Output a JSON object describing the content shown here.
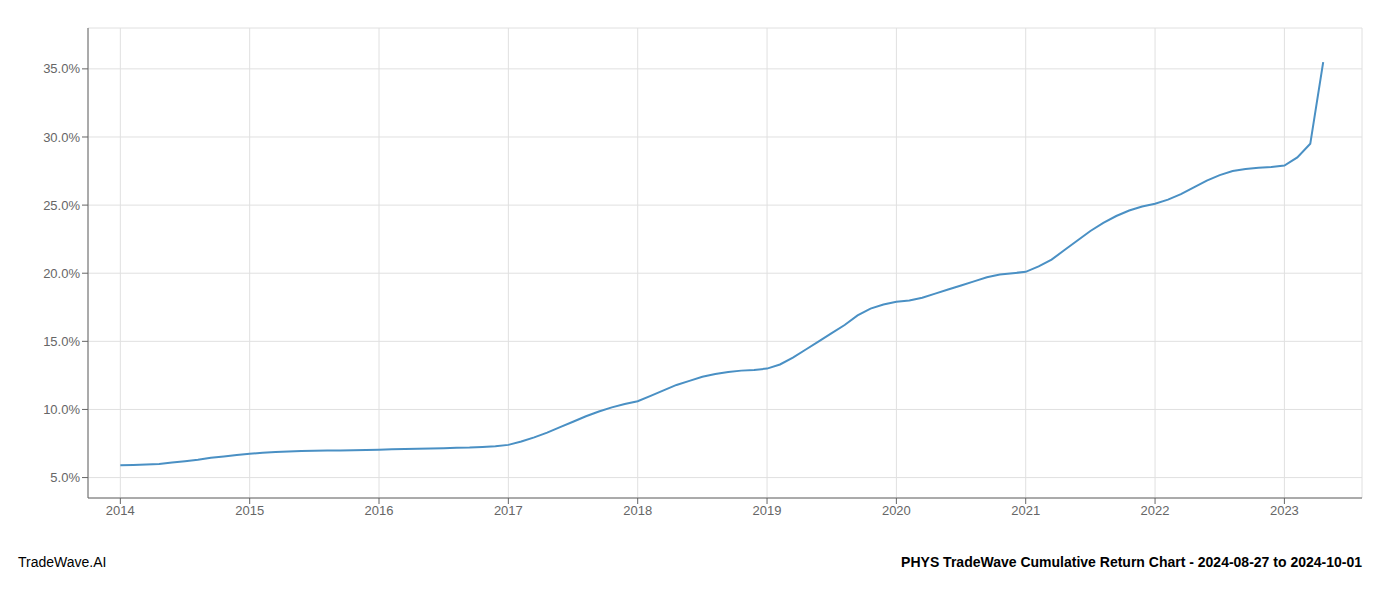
{
  "chart_data": {
    "type": "line",
    "title": "PHYS TradeWave Cumulative Return Chart - 2024-08-27 to 2024-10-01",
    "annotations": [
      "TradeWave.AI"
    ],
    "color": "#4a90c4",
    "grid": true,
    "x": [
      2014.0,
      2014.1,
      2014.2,
      2014.3,
      2014.4,
      2014.5,
      2014.6,
      2014.7,
      2014.8,
      2014.9,
      2015.0,
      2015.1,
      2015.2,
      2015.3,
      2015.4,
      2015.5,
      2015.6,
      2015.7,
      2015.8,
      2015.9,
      2016.0,
      2016.1,
      2016.2,
      2016.3,
      2016.4,
      2016.5,
      2016.6,
      2016.7,
      2016.8,
      2016.9,
      2017.0,
      2017.1,
      2017.2,
      2017.3,
      2017.4,
      2017.5,
      2017.6,
      2017.7,
      2017.8,
      2017.9,
      2018.0,
      2018.1,
      2018.2,
      2018.3,
      2018.4,
      2018.5,
      2018.6,
      2018.7,
      2018.8,
      2018.9,
      2019.0,
      2019.1,
      2019.2,
      2019.3,
      2019.4,
      2019.5,
      2019.6,
      2019.7,
      2019.8,
      2019.9,
      2020.0,
      2020.1,
      2020.2,
      2020.3,
      2020.4,
      2020.5,
      2020.6,
      2020.7,
      2020.8,
      2020.9,
      2021.0,
      2021.1,
      2021.2,
      2021.3,
      2021.4,
      2021.5,
      2021.6,
      2021.7,
      2021.8,
      2021.9,
      2022.0,
      2022.1,
      2022.2,
      2022.3,
      2022.4,
      2022.5,
      2022.6,
      2022.7,
      2022.8,
      2022.9,
      2023.0,
      2023.1,
      2023.2,
      2023.3
    ],
    "values": [
      5.9,
      5.92,
      5.95,
      6.0,
      6.1,
      6.2,
      6.3,
      6.45,
      6.55,
      6.65,
      6.75,
      6.82,
      6.88,
      6.92,
      6.95,
      6.97,
      6.98,
      6.99,
      7.0,
      7.02,
      7.05,
      7.08,
      7.1,
      7.12,
      7.14,
      7.16,
      7.18,
      7.2,
      7.25,
      7.3,
      7.4,
      7.65,
      7.95,
      8.3,
      8.7,
      9.1,
      9.5,
      9.85,
      10.15,
      10.4,
      10.6,
      11.0,
      11.4,
      11.8,
      12.1,
      12.4,
      12.6,
      12.75,
      12.85,
      12.9,
      13.0,
      13.3,
      13.8,
      14.4,
      15.0,
      15.6,
      16.2,
      16.9,
      17.4,
      17.7,
      17.9,
      18.0,
      18.2,
      18.5,
      18.8,
      19.1,
      19.4,
      19.7,
      19.9,
      20.0,
      20.1,
      20.5,
      21.0,
      21.7,
      22.4,
      23.1,
      23.7,
      24.2,
      24.6,
      24.9,
      25.1,
      25.4,
      25.8,
      26.3,
      26.8,
      27.2,
      27.5,
      27.65,
      27.75,
      27.8,
      27.9,
      28.5,
      29.5,
      35.5
    ],
    "xlim": [
      2013.75,
      2023.6
    ],
    "ylim": [
      3.5,
      38.0
    ],
    "xticks": [
      2014,
      2015,
      2016,
      2017,
      2018,
      2019,
      2020,
      2021,
      2022,
      2023
    ],
    "yticks": [
      {
        "value": 5.0,
        "label": "5.0%"
      },
      {
        "value": 10.0,
        "label": "10.0%"
      },
      {
        "value": 15.0,
        "label": "15.0%"
      },
      {
        "value": 20.0,
        "label": "20.0%"
      },
      {
        "value": 25.0,
        "label": "25.0%"
      },
      {
        "value": 30.0,
        "label": "30.0%"
      },
      {
        "value": 35.0,
        "label": "35.0%"
      }
    ]
  }
}
